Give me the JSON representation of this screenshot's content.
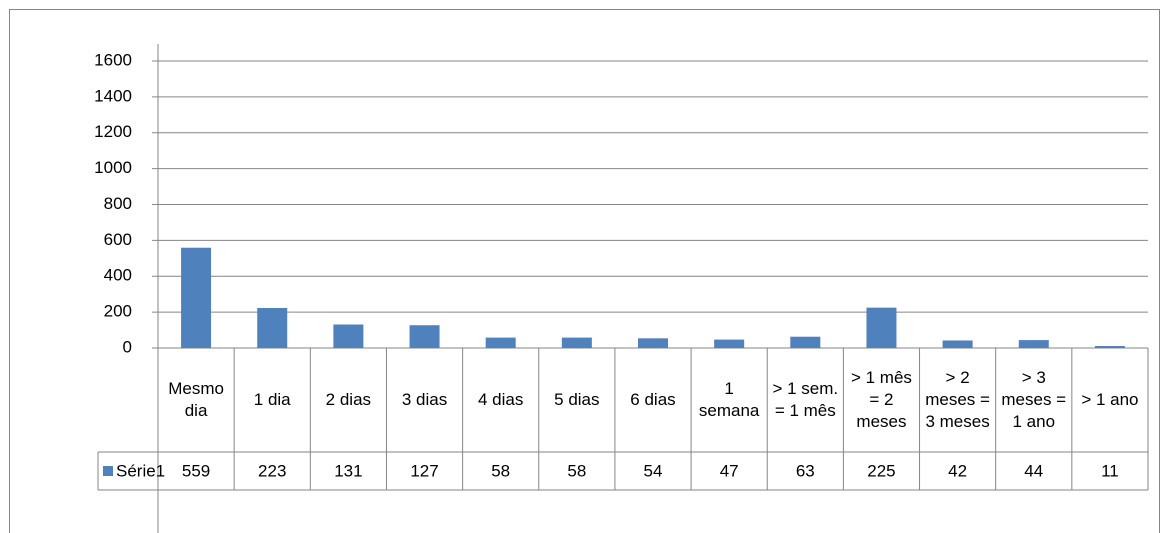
{
  "chart_data": {
    "type": "bar",
    "categories": [
      "Mesmo dia",
      "1 dia",
      "2 dias",
      "3 dias",
      "4 dias",
      "5 dias",
      "6 dias",
      "1 semana",
      "> 1 sem. = 1 mês",
      "> 1 mês = 2 meses",
      "> 2 meses = 3 meses",
      "> 3 meses = 1 ano",
      "> 1 ano"
    ],
    "series": [
      {
        "name": "Série1",
        "color": "#4f81bd",
        "values": [
          559,
          223,
          131,
          127,
          58,
          58,
          54,
          47,
          63,
          225,
          42,
          44,
          11
        ]
      }
    ],
    "ylim": [
      0,
      1600
    ],
    "yticks": [
      0,
      200,
      400,
      600,
      800,
      1000,
      1200,
      1400,
      1600
    ],
    "grid": true,
    "data_table": true
  }
}
